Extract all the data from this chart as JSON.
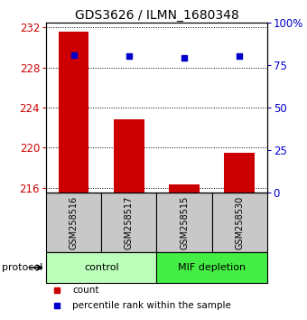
{
  "title": "GDS3626 / ILMN_1680348",
  "samples": [
    "GSM258516",
    "GSM258517",
    "GSM258515",
    "GSM258530"
  ],
  "bar_values": [
    231.6,
    222.8,
    216.3,
    219.5
  ],
  "percentile_values": [
    81,
    80,
    79,
    80
  ],
  "ylim_left": [
    215.5,
    232.5
  ],
  "yticks_left": [
    216,
    220,
    224,
    228,
    232
  ],
  "ylim_right": [
    0,
    100
  ],
  "yticks_right": [
    0,
    25,
    50,
    75,
    100
  ],
  "bar_color": "#cc0000",
  "dot_color": "#0000cc",
  "bar_width": 0.55,
  "groups": [
    {
      "label": "control",
      "indices": [
        0,
        1
      ],
      "color": "#bbffbb"
    },
    {
      "label": "MIF depletion",
      "indices": [
        2,
        3
      ],
      "color": "#44ee44"
    }
  ],
  "sample_bg_color": "#c8c8c8",
  "protocol_label": "protocol",
  "legend_count_label": "count",
  "legend_pct_label": "percentile rank within the sample",
  "left_axis_color": "#cc0000",
  "right_axis_color": "#0000cc"
}
